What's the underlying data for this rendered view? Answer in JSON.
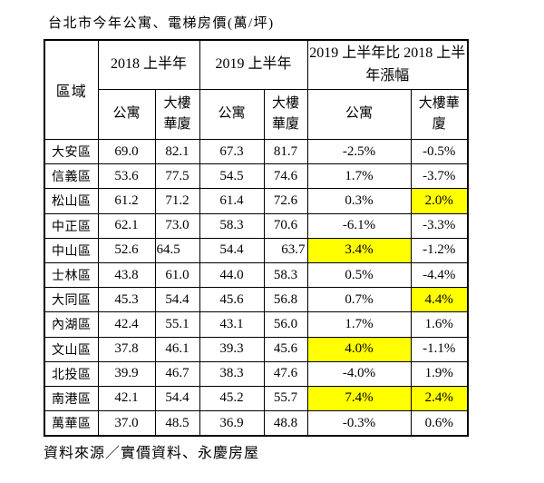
{
  "title": "台北市今年公寓、電梯房價(萬/坪)",
  "source": "資料來源／實價資料、永慶房屋",
  "colors": {
    "highlight": "#ffff00",
    "border": "#000000",
    "text": "#000000",
    "background": "#ffffff"
  },
  "table": {
    "corner_header": "區域",
    "col_groups": [
      {
        "label": "2018 上半年",
        "sub": [
          "公寓",
          "大樓\n華廈"
        ]
      },
      {
        "label": "2019 上半年",
        "sub": [
          "公寓",
          "大樓\n華廈"
        ]
      },
      {
        "label": "2019 上半年比 2018 上半年漲幅",
        "sub": [
          "公寓",
          "大樓華\n廈"
        ]
      }
    ],
    "rows": [
      {
        "district": "大安區",
        "values": [
          "69.0",
          "82.1",
          "67.3",
          "81.7",
          "-2.5%",
          "-0.5%"
        ],
        "highlights": []
      },
      {
        "district": "信義區",
        "values": [
          "53.6",
          "77.5",
          "54.5",
          "74.6",
          "1.7%",
          "-3.7%"
        ],
        "highlights": []
      },
      {
        "district": "松山區",
        "values": [
          "61.2",
          "71.2",
          "61.4",
          "72.6",
          "0.3%",
          "2.0%"
        ],
        "highlights": [
          5
        ]
      },
      {
        "district": "中正區",
        "values": [
          "62.1",
          "73.0",
          "58.3",
          "70.6",
          "-6.1%",
          "-3.3%"
        ],
        "highlights": []
      },
      {
        "district": "中山區",
        "values": [
          "52.6",
          "64.5",
          "54.4",
          "63.7",
          "3.4%",
          "-1.2%"
        ],
        "highlights": [
          4
        ],
        "aligns": {
          "1": "left",
          "3": "right"
        }
      },
      {
        "district": "士林區",
        "values": [
          "43.8",
          "61.0",
          "44.0",
          "58.3",
          "0.5%",
          "-4.4%"
        ],
        "highlights": []
      },
      {
        "district": "大同區",
        "values": [
          "45.3",
          "54.4",
          "45.6",
          "56.8",
          "0.7%",
          "4.4%"
        ],
        "highlights": [
          5
        ]
      },
      {
        "district": "內湖區",
        "values": [
          "42.4",
          "55.1",
          "43.1",
          "56.0",
          "1.7%",
          "1.6%"
        ],
        "highlights": []
      },
      {
        "district": "文山區",
        "values": [
          "37.8",
          "46.1",
          "39.3",
          "45.6",
          "4.0%",
          "-1.1%"
        ],
        "highlights": [
          4
        ]
      },
      {
        "district": "北投區",
        "values": [
          "39.9",
          "46.7",
          "38.3",
          "47.6",
          "-4.0%",
          "1.9%"
        ],
        "highlights": []
      },
      {
        "district": "南港區",
        "values": [
          "42.1",
          "54.4",
          "45.2",
          "55.7",
          "7.4%",
          "2.4%"
        ],
        "highlights": [
          4,
          5
        ]
      },
      {
        "district": "萬華區",
        "values": [
          "37.0",
          "48.5",
          "36.9",
          "48.8",
          "-0.3%",
          "0.6%"
        ],
        "highlights": []
      }
    ]
  }
}
